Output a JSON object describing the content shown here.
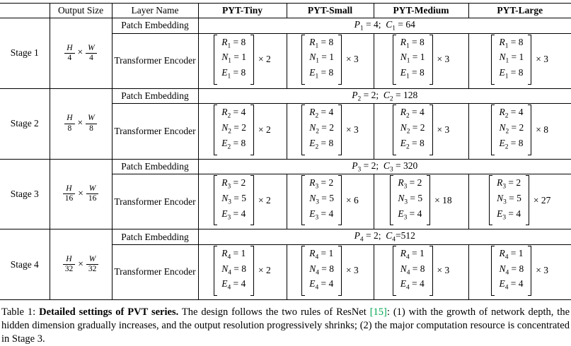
{
  "page": {
    "background": "#ffffff",
    "text_color": "#000000",
    "citation_color": "#00A550"
  },
  "table": {
    "header": {
      "stage": "",
      "output_size": "Output Size",
      "layer_name": "Layer Name",
      "variants": [
        "PYT-Tiny",
        "PYT-Small",
        "PYT-Medium",
        "PYT-Large"
      ]
    },
    "labels": {
      "patch_embedding": "Patch Embedding",
      "transformer_encoder": "Transformer Encoder",
      "times": "×"
    },
    "stages": [
      {
        "name": "Stage 1",
        "output_size": {
          "num1": "H",
          "den1": "4",
          "num2": "W",
          "den2": "4"
        },
        "patch_formula": "P_1 = 4; C_1 = 64",
        "encoder_lines": [
          "R_1 = 8",
          "N_1 = 1",
          "E_1 = 8"
        ],
        "multipliers": [
          "× 2",
          "× 3",
          "× 3",
          "× 3"
        ]
      },
      {
        "name": "Stage 2",
        "output_size": {
          "num1": "H",
          "den1": "8",
          "num2": "W",
          "den2": "8"
        },
        "patch_formula": "P_2 = 2; C_2 = 128",
        "encoder_lines": [
          "R_2 = 4",
          "N_2 = 2",
          "E_2 = 8"
        ],
        "multipliers": [
          "× 2",
          "× 3",
          "× 3",
          "× 8"
        ]
      },
      {
        "name": "Stage 3",
        "output_size": {
          "num1": "H",
          "den1": "16",
          "num2": "W",
          "den2": "16"
        },
        "patch_formula": "P_3 = 2; C_3 = 320",
        "encoder_lines": [
          "R_3 = 2",
          "N_3 = 5",
          "E_3 = 4"
        ],
        "multipliers": [
          "× 2",
          "× 6",
          "× 18",
          "× 27"
        ]
      },
      {
        "name": "Stage 4",
        "output_size": {
          "num1": "H",
          "den1": "32",
          "num2": "W",
          "den2": "32"
        },
        "patch_formula": "P_4 = 2; C_4=512",
        "encoder_lines": [
          "R_4 = 1",
          "N_4 = 8",
          "E_4 = 4"
        ],
        "multipliers": [
          "× 2",
          "× 3",
          "× 3",
          "× 3"
        ]
      }
    ]
  },
  "caption": {
    "label": "Table 1: ",
    "title_bold": "Detailed settings of PVT series.",
    "body_before_cite": " The design follows the two rules of ResNet ",
    "citation": "[15]",
    "body_after_cite": ": (1) with the growth of network depth, the hidden dimension gradually increases, and the output resolution progressively shrinks; (2) the major computation resource is concentrated in Stage 3."
  }
}
